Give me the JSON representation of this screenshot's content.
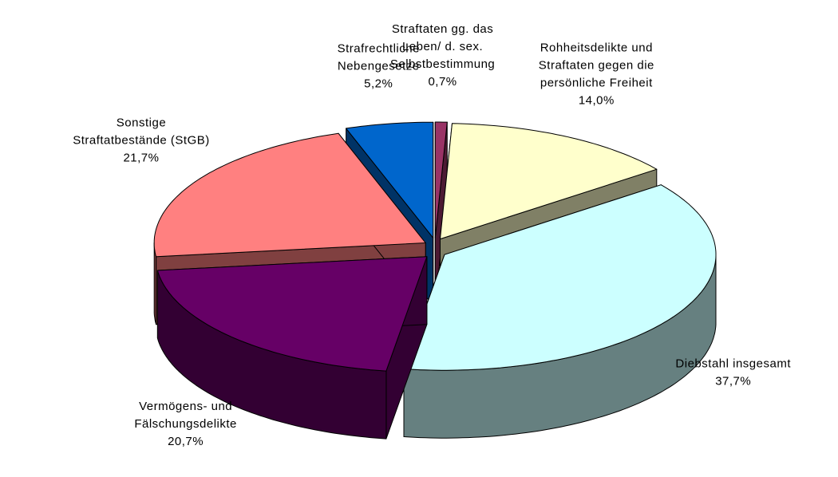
{
  "chart_data": {
    "type": "pie3d",
    "categories": [
      "Straftaten gg. das\nLeben/ d. sex.\nSelbstbestimmung",
      "Rohheitsdelikte und\nStraftaten gegen die\npersönliche Freiheit",
      "Diebstahl insgesamt",
      "Vermögens- und\nFälschungsdelikte",
      "Sonstige\nStraftatbestände (StGB)",
      "Strafrechtliche\nNebengesetze"
    ],
    "values": [
      0.7,
      14.0,
      37.7,
      20.7,
      21.7,
      5.2
    ],
    "value_labels": [
      "0,7%",
      "14,0%",
      "37,7%",
      "20,7%",
      "21,7%",
      "5,2%"
    ],
    "colors": [
      "#993366",
      "#ffffcc",
      "#ccffff",
      "#660066",
      "#ff8080",
      "#0066cc"
    ],
    "side_colors": [
      "#4d1a33",
      "#808066",
      "#668080",
      "#330033",
      "#804040",
      "#003366"
    ]
  }
}
